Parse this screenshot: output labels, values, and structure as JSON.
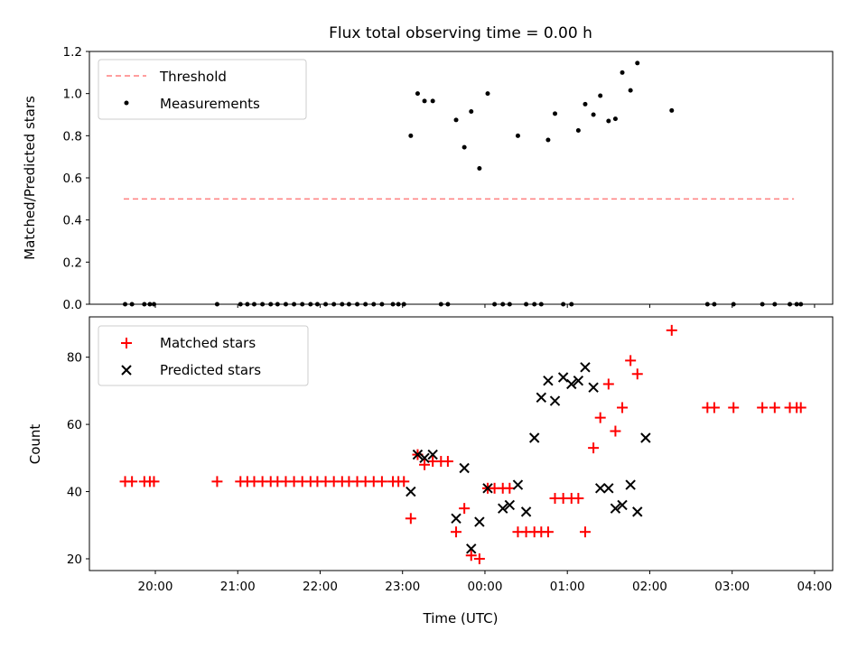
{
  "title": "Flux total observing time = 0.00 h",
  "xlabel": "Time (UTC)",
  "colors": {
    "threshold": "#ff7f7f",
    "measurements": "#000000",
    "matched": "#ff0000",
    "predicted": "#000000"
  },
  "chart_data": [
    {
      "type": "scatter",
      "ylabel": "Matched/Predicted stars",
      "ylim": [
        0,
        1.2
      ],
      "yticks": [
        "0.0",
        "0.2",
        "0.4",
        "0.6",
        "0.8",
        "1.0",
        "1.2"
      ],
      "legend_placement": "upper-left",
      "threshold": {
        "name": "Threshold",
        "x": [
          "19:37",
          "23:59",
          "03:45"
        ],
        "value": 0.5
      },
      "series": [
        {
          "name": "Measurements",
          "marker": "dot",
          "x": [
            "19:38",
            "19:43",
            "19:52",
            "19:56",
            "19:59",
            "20:45",
            "21:02",
            "21:07",
            "21:12",
            "21:18",
            "21:24",
            "21:29",
            "21:35",
            "21:41",
            "21:47",
            "21:53",
            "21:58",
            "22:04",
            "22:10",
            "22:16",
            "22:21",
            "22:27",
            "22:33",
            "22:39",
            "22:45",
            "22:53",
            "22:57",
            "23:01",
            "23:06",
            "23:11",
            "23:16",
            "23:22",
            "23:28",
            "23:33",
            "23:39",
            "23:45",
            "23:50",
            "23:56",
            "00:02",
            "00:07",
            "00:13",
            "00:18",
            "00:24",
            "00:30",
            "00:36",
            "00:41",
            "00:46",
            "00:51",
            "00:57",
            "01:03",
            "01:08",
            "01:13",
            "01:19",
            "01:24",
            "01:30",
            "01:35",
            "01:40",
            "01:46",
            "01:51",
            "02:16",
            "02:42",
            "02:47",
            "03:01",
            "03:22",
            "03:31",
            "03:42",
            "03:47",
            "03:50"
          ],
          "y": [
            0,
            0,
            0,
            0,
            0,
            0,
            0,
            0,
            0,
            0,
            0,
            0,
            0,
            0,
            0,
            0,
            0,
            0,
            0,
            0,
            0,
            0,
            0,
            0,
            0,
            0,
            0,
            0,
            0.8,
            1.0,
            0.965,
            0.965,
            0,
            0,
            0.875,
            0.745,
            0.915,
            0.645,
            1.0,
            0,
            0,
            0,
            0.8,
            0,
            0,
            0,
            0.78,
            0.905,
            0,
            0,
            0.825,
            0.95,
            0.9,
            0.99,
            0.87,
            0.88,
            1.1,
            1.015,
            1.145,
            0.92,
            0,
            0,
            0,
            0,
            0,
            0,
            0,
            0
          ]
        }
      ]
    },
    {
      "type": "scatter",
      "ylabel": "Count",
      "ylim": [
        16.5,
        92
      ],
      "yticks": [
        "20",
        "40",
        "60",
        "80"
      ],
      "xticks": [
        "20:00",
        "21:00",
        "22:00",
        "23:00",
        "00:00",
        "01:00",
        "02:00",
        "03:00",
        "04:00"
      ],
      "legend_placement": "upper-left",
      "series": [
        {
          "name": "Matched stars",
          "marker": "plus",
          "x": [
            "19:38",
            "19:43",
            "19:52",
            "19:56",
            "19:59",
            "20:45",
            "21:02",
            "21:07",
            "21:12",
            "21:18",
            "21:24",
            "21:29",
            "21:35",
            "21:41",
            "21:47",
            "21:53",
            "21:58",
            "22:04",
            "22:10",
            "22:16",
            "22:21",
            "22:27",
            "22:33",
            "22:39",
            "22:45",
            "22:53",
            "22:57",
            "23:01",
            "23:06",
            "23:11",
            "23:16",
            "23:22",
            "23:28",
            "23:33",
            "23:39",
            "23:45",
            "23:50",
            "23:56",
            "00:02",
            "00:07",
            "00:13",
            "00:18",
            "00:24",
            "00:30",
            "00:36",
            "00:41",
            "00:46",
            "00:51",
            "00:57",
            "01:03",
            "01:08",
            "01:13",
            "01:19",
            "01:24",
            "01:30",
            "01:35",
            "01:40",
            "01:46",
            "01:51",
            "02:16",
            "02:42",
            "02:47",
            "03:01",
            "03:22",
            "03:31",
            "03:42",
            "03:47",
            "03:50"
          ],
          "y": [
            43,
            43,
            43,
            43,
            43,
            43,
            43,
            43,
            43,
            43,
            43,
            43,
            43,
            43,
            43,
            43,
            43,
            43,
            43,
            43,
            43,
            43,
            43,
            43,
            43,
            43,
            43,
            43,
            32,
            51,
            48,
            49,
            49,
            49,
            28,
            35,
            21,
            20,
            41,
            41,
            41,
            41,
            28,
            28,
            28,
            28,
            28,
            38,
            38,
            38,
            38,
            28,
            53,
            62,
            72,
            58,
            65,
            79,
            75,
            88,
            65,
            65,
            65,
            65,
            65,
            65,
            65,
            65
          ]
        },
        {
          "name": "Predicted stars",
          "marker": "x",
          "x": [
            "23:06",
            "23:11",
            "23:16",
            "23:22",
            "23:39",
            "23:45",
            "23:50",
            "23:56",
            "00:02",
            "00:13",
            "00:18",
            "00:24",
            "00:30",
            "00:36",
            "00:41",
            "00:46",
            "00:51",
            "00:57",
            "01:03",
            "01:08",
            "01:13",
            "01:19",
            "01:24",
            "01:30",
            "01:35",
            "01:40",
            "01:46",
            "01:51",
            "01:57"
          ],
          "y": [
            40,
            51,
            50,
            51,
            32,
            47,
            23,
            31,
            41,
            35,
            36,
            42,
            34,
            56,
            68,
            73,
            67,
            74,
            72,
            73,
            77,
            71,
            41,
            41,
            35,
            36,
            42,
            34,
            56
          ]
        }
      ]
    }
  ]
}
